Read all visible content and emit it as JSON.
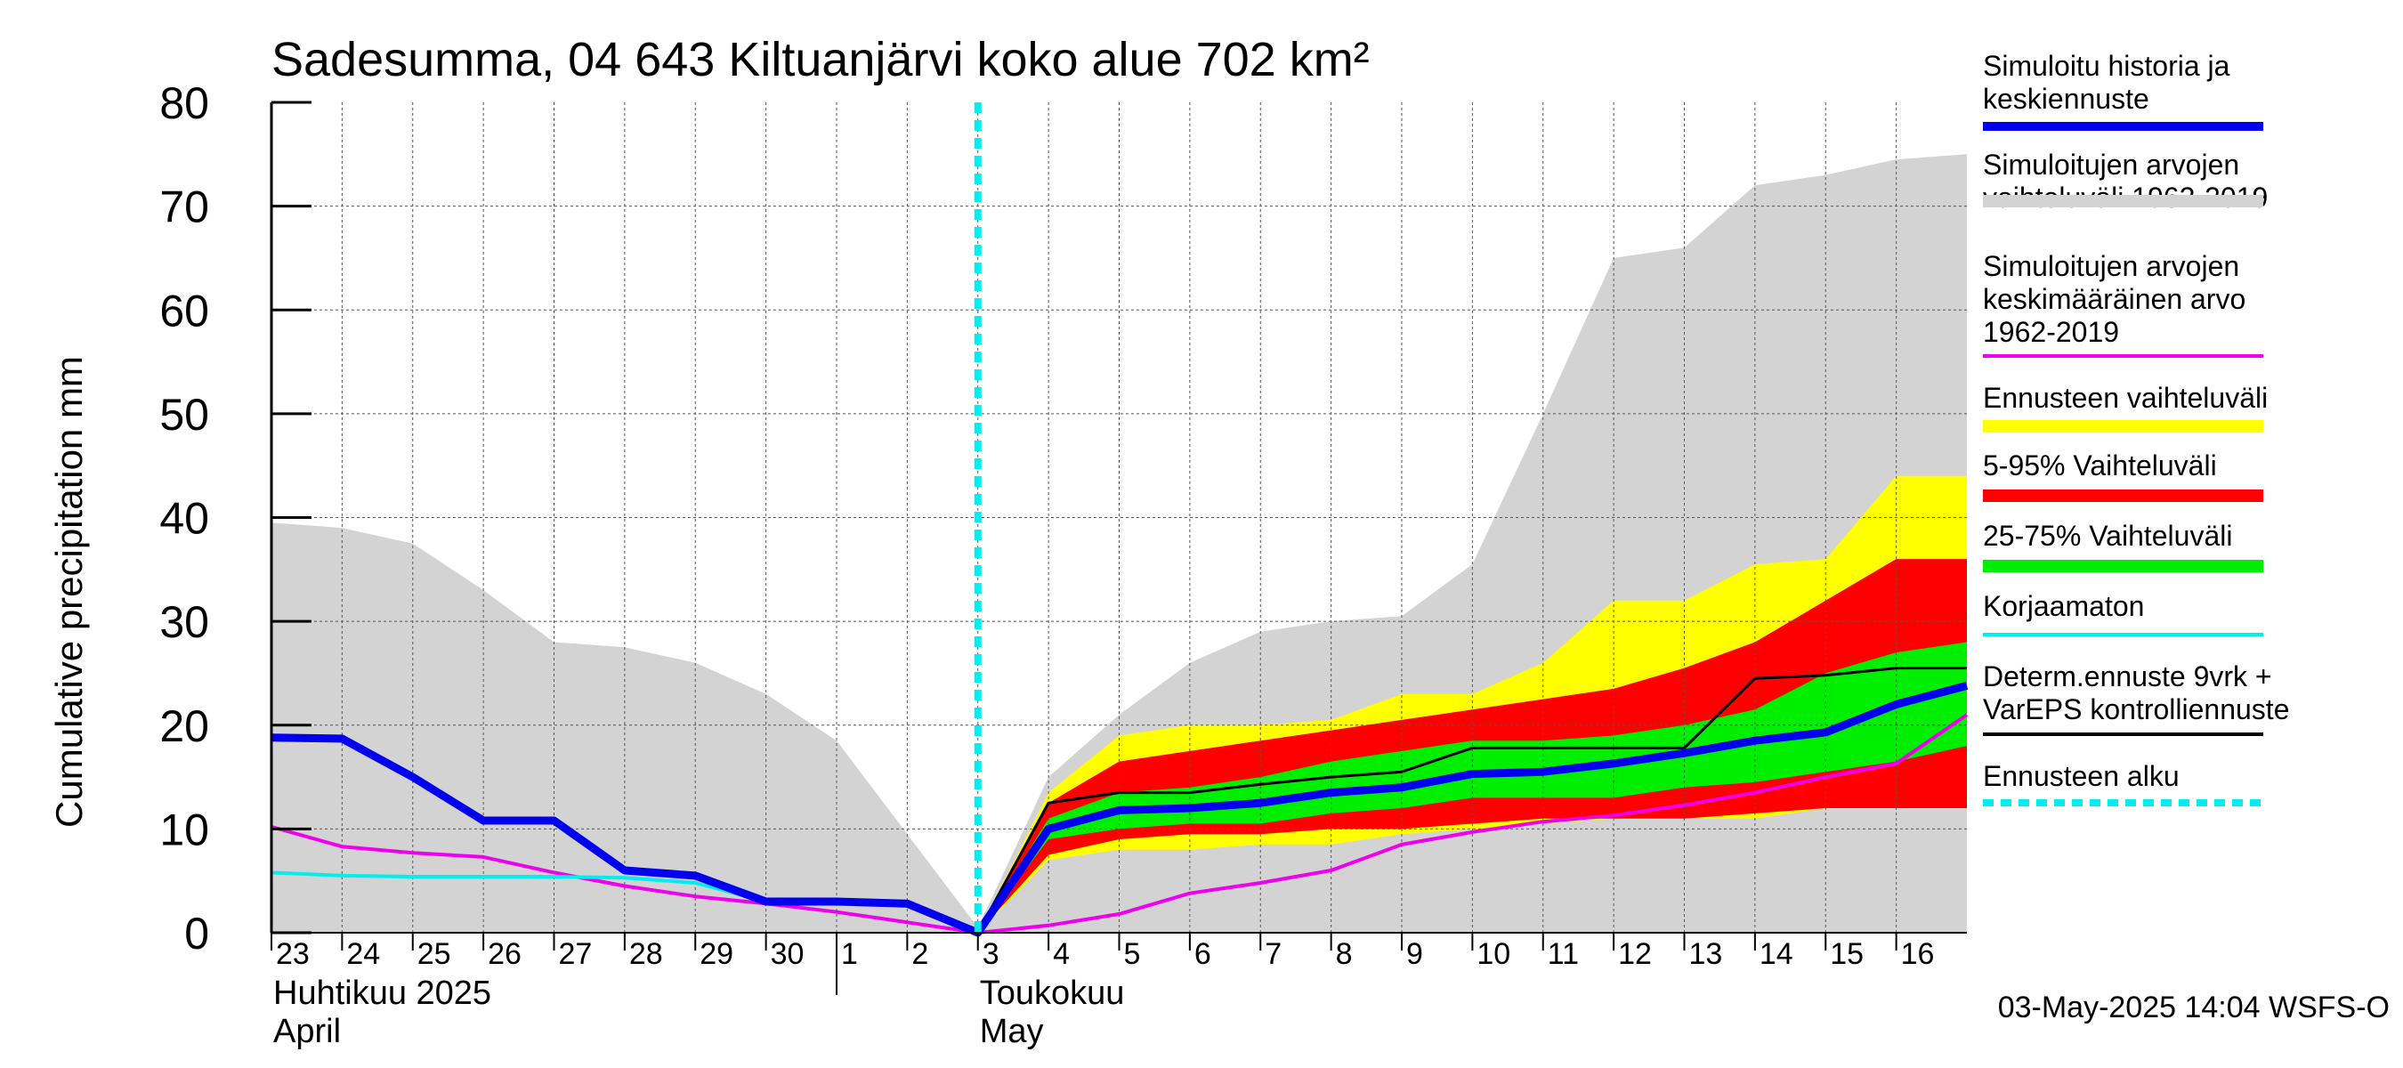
{
  "title": "Sadesumma, 04 643 Kiltuanjärvi koko alue 702 km²",
  "footer": "03-May-2025 14:04 WSFS-O",
  "chart_data": {
    "type": "area",
    "title": "Sadesumma, 04 643 Kiltuanjärvi koko alue 702 km²",
    "ylabel": "Cumulative precipitation   mm",
    "ylim": [
      0,
      80
    ],
    "yticks": [
      0,
      10,
      20,
      30,
      40,
      50,
      60,
      70,
      80
    ],
    "x_start": "2025-04-23",
    "x_end": "2025-05-17",
    "grid": true,
    "legend_position": "right",
    "x_day_ticks": [
      {
        "date": "2025-04-23",
        "label": "23"
      },
      {
        "date": "2025-04-24",
        "label": "24"
      },
      {
        "date": "2025-04-25",
        "label": "25"
      },
      {
        "date": "2025-04-26",
        "label": "26"
      },
      {
        "date": "2025-04-27",
        "label": "27"
      },
      {
        "date": "2025-04-28",
        "label": "28"
      },
      {
        "date": "2025-04-29",
        "label": "29"
      },
      {
        "date": "2025-04-30",
        "label": "30"
      },
      {
        "date": "2025-05-01",
        "label": "1"
      },
      {
        "date": "2025-05-02",
        "label": "2"
      },
      {
        "date": "2025-05-03",
        "label": "3"
      },
      {
        "date": "2025-05-04",
        "label": "4"
      },
      {
        "date": "2025-05-05",
        "label": "5"
      },
      {
        "date": "2025-05-06",
        "label": "6"
      },
      {
        "date": "2025-05-07",
        "label": "7"
      },
      {
        "date": "2025-05-08",
        "label": "8"
      },
      {
        "date": "2025-05-09",
        "label": "9"
      },
      {
        "date": "2025-05-10",
        "label": "10"
      },
      {
        "date": "2025-05-11",
        "label": "11"
      },
      {
        "date": "2025-05-12",
        "label": "12"
      },
      {
        "date": "2025-05-13",
        "label": "13"
      },
      {
        "date": "2025-05-14",
        "label": "14"
      },
      {
        "date": "2025-05-15",
        "label": "15"
      },
      {
        "date": "2025-05-16",
        "label": "16"
      }
    ],
    "month_labels": [
      {
        "date": "2025-04-23",
        "lines": [
          "Huhtikuu  2025",
          "April"
        ]
      },
      {
        "date": "2025-05-03",
        "lines": [
          "Toukokuu",
          "May"
        ]
      }
    ],
    "month_boundary": "2025-05-01",
    "forecast_start": "2025-05-03",
    "legend": [
      {
        "label": "Simuloitu historia ja keskiennuste",
        "lines": [
          "Simuloitu historia ja",
          "keskiennuste"
        ],
        "color": "#0000ee",
        "style": "thick-line"
      },
      {
        "label": "Simuloitujen arvojen vaihteluväli 1962-2019",
        "lines": [
          "Simuloitujen arvojen",
          "vaihteluväli 1962-2019"
        ],
        "color": "#d3d3d3",
        "style": "band"
      },
      {
        "label": "Simuloitujen arvojen keskimääräinen arvo 1962-2019",
        "lines": [
          "Simuloitujen arvojen",
          "keskimääräinen arvo",
          "   1962-2019"
        ],
        "color": "#ee00ee",
        "style": "line"
      },
      {
        "label": "Ennusteen vaihteluväli",
        "lines": [
          "Ennusteen vaihteluväli"
        ],
        "color": "#ffff00",
        "style": "band"
      },
      {
        "label": "5-95% Vaihteluväli",
        "lines": [
          "5-95% Vaihteluväli"
        ],
        "color": "#ff0000",
        "style": "band"
      },
      {
        "label": "25-75% Vaihteluväli",
        "lines": [
          "25-75% Vaihteluväli"
        ],
        "color": "#00ee00",
        "style": "band"
      },
      {
        "label": "Korjaamaton",
        "lines": [
          "Korjaamaton"
        ],
        "color": "#00eeee",
        "style": "line"
      },
      {
        "label": "Determ.ennuste 9vrk + VarEPS kontrolliennuste",
        "lines": [
          "Determ.ennuste 9vrk +",
          "VarEPS kontrolliennuste"
        ],
        "color": "#000000",
        "style": "line"
      },
      {
        "label": "Ennusteen alku",
        "lines": [
          "Ennusteen alku"
        ],
        "color": "#00eeee",
        "style": "dashed"
      }
    ],
    "series": {
      "historical_range": {
        "x": [
          "2025-04-23",
          "2025-04-24",
          "2025-04-25",
          "2025-04-26",
          "2025-04-27",
          "2025-04-28",
          "2025-04-29",
          "2025-04-30",
          "2025-05-01",
          "2025-05-02",
          "2025-05-03",
          "2025-05-04",
          "2025-05-05",
          "2025-05-06",
          "2025-05-07",
          "2025-05-08",
          "2025-05-09",
          "2025-05-10",
          "2025-05-11",
          "2025-05-12",
          "2025-05-13",
          "2025-05-14",
          "2025-05-15",
          "2025-05-16",
          "2025-05-17"
        ],
        "upper": [
          39.5,
          39,
          37.5,
          33,
          28,
          27.5,
          26,
          23,
          18.5,
          9.5,
          0.5,
          15,
          21,
          26,
          29,
          30,
          30.5,
          35.5,
          50,
          65,
          66,
          72,
          73,
          74.5,
          75
        ],
        "lower": [
          0,
          0,
          0,
          0,
          0,
          0,
          0,
          0,
          0,
          0,
          0,
          0,
          0,
          0,
          0,
          0,
          0,
          0,
          0,
          0,
          0,
          0,
          0,
          0,
          0
        ]
      },
      "forecast_range": {
        "x": [
          "2025-05-03",
          "2025-05-04",
          "2025-05-05",
          "2025-05-06",
          "2025-05-07",
          "2025-05-08",
          "2025-05-09",
          "2025-05-10",
          "2025-05-11",
          "2025-05-12",
          "2025-05-13",
          "2025-05-14",
          "2025-05-15",
          "2025-05-16",
          "2025-05-17"
        ],
        "upper": [
          0,
          13.5,
          19,
          20,
          20,
          20.5,
          23,
          23,
          26,
          32,
          32,
          35.5,
          36,
          44,
          44
        ],
        "lower": [
          0,
          7,
          8,
          8,
          8.5,
          8.5,
          9.5,
          10,
          10.5,
          11,
          11,
          11,
          12,
          12,
          12
        ]
      },
      "p5_95": {
        "x": [
          "2025-05-03",
          "2025-05-04",
          "2025-05-05",
          "2025-05-06",
          "2025-05-07",
          "2025-05-08",
          "2025-05-09",
          "2025-05-10",
          "2025-05-11",
          "2025-05-12",
          "2025-05-13",
          "2025-05-14",
          "2025-05-15",
          "2025-05-16",
          "2025-05-17"
        ],
        "upper": [
          0,
          12.5,
          16.5,
          17.5,
          18.5,
          19.5,
          20.5,
          21.5,
          22.5,
          23.5,
          25.5,
          28,
          32,
          36,
          36
        ],
        "lower": [
          0,
          7.5,
          9,
          9.5,
          9.5,
          10,
          10,
          10.5,
          11,
          11,
          11,
          11.5,
          12,
          12,
          12
        ]
      },
      "p25_75": {
        "x": [
          "2025-05-03",
          "2025-05-04",
          "2025-05-05",
          "2025-05-06",
          "2025-05-07",
          "2025-05-08",
          "2025-05-09",
          "2025-05-10",
          "2025-05-11",
          "2025-05-12",
          "2025-05-13",
          "2025-05-14",
          "2025-05-15",
          "2025-05-16",
          "2025-05-17"
        ],
        "upper": [
          0,
          11,
          13.5,
          14,
          15,
          16.5,
          17.5,
          18.5,
          18.5,
          19,
          20,
          21.5,
          25,
          27,
          28
        ],
        "lower": [
          0,
          9,
          10,
          10.5,
          10.5,
          11.5,
          12,
          13,
          13,
          13,
          14,
          14.5,
          15.5,
          16.5,
          18
        ]
      },
      "mean_forecast": {
        "name": "Simuloitu historia ja keskiennuste",
        "x": [
          "2025-04-23",
          "2025-04-24",
          "2025-04-25",
          "2025-04-26",
          "2025-04-27",
          "2025-04-28",
          "2025-04-29",
          "2025-04-30",
          "2025-05-01",
          "2025-05-02",
          "2025-05-03",
          "2025-05-04",
          "2025-05-05",
          "2025-05-06",
          "2025-05-07",
          "2025-05-08",
          "2025-05-09",
          "2025-05-10",
          "2025-05-11",
          "2025-05-12",
          "2025-05-13",
          "2025-05-14",
          "2025-05-15",
          "2025-05-16",
          "2025-05-17"
        ],
        "values": [
          18.8,
          18.7,
          15,
          10.8,
          10.8,
          6,
          5.5,
          3,
          3,
          2.8,
          0,
          10,
          11.8,
          12,
          12.5,
          13.5,
          14,
          15.3,
          15.5,
          16.3,
          17.3,
          18.5,
          19.3,
          22,
          23.8
        ]
      },
      "uncorrected": {
        "name": "Korjaamaton",
        "x": [
          "2025-04-23",
          "2025-04-24",
          "2025-04-25",
          "2025-04-26",
          "2025-04-27",
          "2025-04-28",
          "2025-04-29",
          "2025-04-30",
          "2025-05-01",
          "2025-05-02",
          "2025-05-03"
        ],
        "values": [
          5.8,
          5.5,
          5.4,
          5.4,
          5.4,
          5.3,
          4.8,
          3,
          2.8,
          2.8,
          0
        ]
      },
      "long_term_mean": {
        "name": "Simuloitujen arvojen keskimääräinen arvo 1962-2019",
        "x": [
          "2025-04-23",
          "2025-04-24",
          "2025-04-25",
          "2025-04-26",
          "2025-04-27",
          "2025-04-28",
          "2025-04-29",
          "2025-04-30",
          "2025-05-01",
          "2025-05-02",
          "2025-05-03",
          "2025-05-04",
          "2025-05-05",
          "2025-05-06",
          "2025-05-07",
          "2025-05-08",
          "2025-05-09",
          "2025-05-10",
          "2025-05-11",
          "2025-05-12",
          "2025-05-13",
          "2025-05-14",
          "2025-05-15",
          "2025-05-16",
          "2025-05-17"
        ],
        "values": [
          10.2,
          8.3,
          7.7,
          7.3,
          5.8,
          4.5,
          3.5,
          2.8,
          2,
          1,
          0,
          0.7,
          1.8,
          3.8,
          4.8,
          6,
          8.5,
          9.7,
          10.7,
          11.3,
          12.3,
          13.5,
          15,
          16.3,
          21
        ]
      },
      "deterministic": {
        "name": "Determ.ennuste 9vrk + VarEPS kontrolliennuste",
        "x": [
          "2025-05-03",
          "2025-05-04",
          "2025-05-05",
          "2025-05-06",
          "2025-05-07",
          "2025-05-08",
          "2025-05-09",
          "2025-05-10",
          "2025-05-11",
          "2025-05-12",
          "2025-05-13",
          "2025-05-14",
          "2025-05-15",
          "2025-05-16",
          "2025-05-17"
        ],
        "values": [
          0,
          12.5,
          13.5,
          13.5,
          14.3,
          15,
          15.5,
          17.8,
          17.8,
          17.8,
          17.8,
          24.5,
          24.8,
          25.5,
          25.5
        ]
      }
    }
  }
}
